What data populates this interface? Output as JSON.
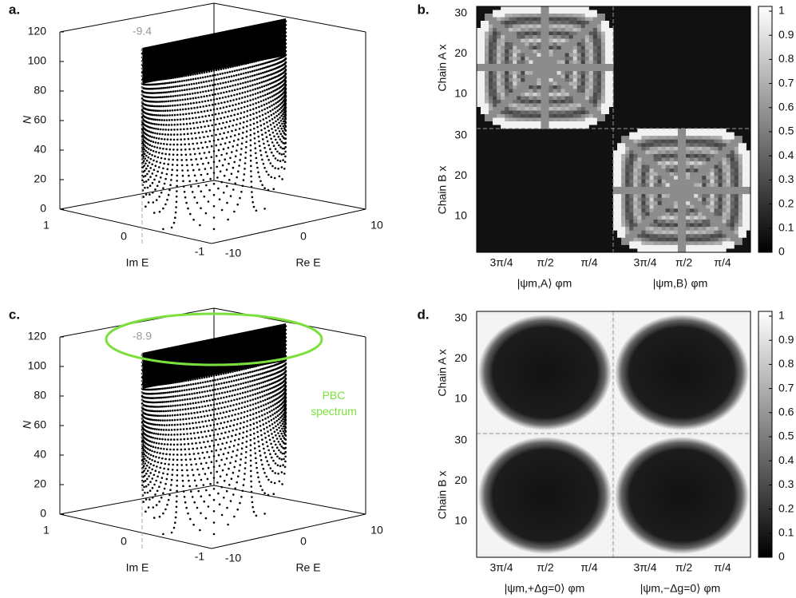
{
  "panels": [
    {
      "label": "a.",
      "z_label": "N",
      "z_ticks": [
        0,
        20,
        40,
        60,
        80,
        100,
        120
      ],
      "x_label": "Im E",
      "x_ticks": [
        1,
        0,
        -1
      ],
      "y_label": "Re E",
      "y_ticks": [
        -10,
        0,
        10
      ],
      "annotation": "-9.4"
    },
    {
      "label": "b.",
      "rows": [
        {
          "label": "Chain A x",
          "ticks": [
            30,
            20,
            10
          ]
        },
        {
          "label": "Chain B x",
          "ticks": [
            30,
            20,
            10
          ]
        }
      ],
      "columns": [
        {
          "label": "|ψm,A⟩ φm",
          "ticks": [
            "3π/4",
            "π/2",
            "π/4"
          ]
        },
        {
          "label": "|ψm,B⟩ φm",
          "ticks": [
            "3π/4",
            "π/2",
            "π/4"
          ]
        }
      ],
      "colorbar_ticks": [
        0,
        0.1,
        0.2,
        0.3,
        0.4,
        0.5,
        0.6,
        0.7,
        0.8,
        0.9,
        1
      ]
    },
    {
      "label": "c.",
      "z_label": "N",
      "z_ticks": [
        0,
        20,
        40,
        60,
        80,
        100,
        120
      ],
      "x_label": "Im E",
      "x_ticks": [
        1,
        0,
        -1
      ],
      "y_label": "Re E",
      "y_ticks": [
        -10,
        0,
        10
      ],
      "annotation": "-8.9",
      "legend": "PBC spectrum"
    },
    {
      "label": "d.",
      "rows": [
        {
          "label": "Chain A x",
          "ticks": [
            30,
            20,
            10
          ]
        },
        {
          "label": "Chain B x",
          "ticks": [
            30,
            20,
            10
          ]
        }
      ],
      "columns": [
        {
          "label": "|ψm,+Δg=0⟩ φm",
          "ticks": [
            "3π/4",
            "π/2",
            "π/4"
          ]
        },
        {
          "label": "|ψm,−Δg=0⟩ φm",
          "ticks": [
            "3π/4",
            "π/2",
            "π/4"
          ]
        }
      ],
      "colorbar_ticks": [
        0,
        0.1,
        0.2,
        0.3,
        0.4,
        0.5,
        0.6,
        0.7,
        0.8,
        0.9,
        1
      ]
    }
  ]
}
